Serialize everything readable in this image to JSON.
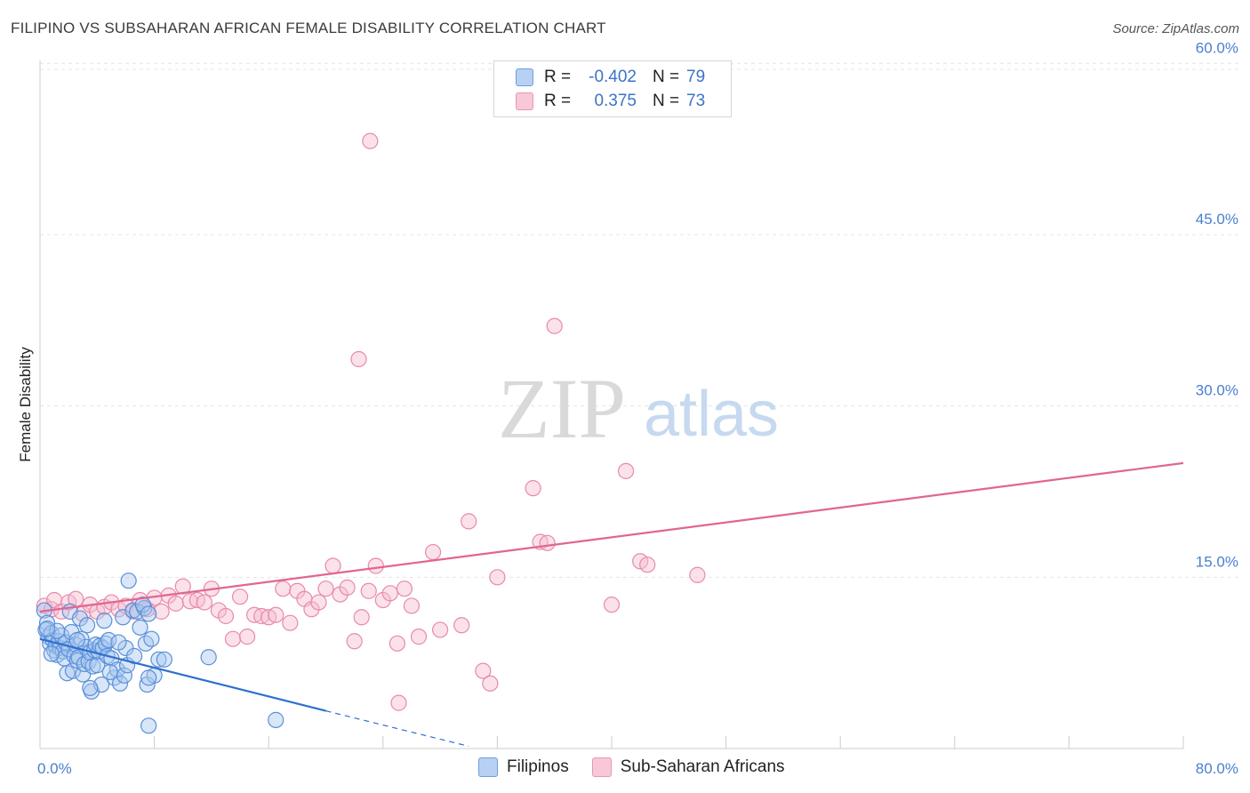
{
  "title": "FILIPINO VS SUBSAHARAN AFRICAN FEMALE DISABILITY CORRELATION CHART",
  "source": "Source: ZipAtlas.com",
  "watermark": {
    "zip": "ZIP",
    "atlas": "atlas"
  },
  "colors": {
    "blue_fill": "#a9c8f0",
    "blue_stroke": "#5a8fd8",
    "blue_line": "#2f6fd0",
    "pink_fill": "#f6bdd0",
    "pink_stroke": "#e88aaa",
    "pink_line": "#e06690",
    "tick": "#4a7fd0"
  },
  "legend": {
    "rows": [
      {
        "r_label": "R =",
        "r_value": "-0.402",
        "n_label": "N =",
        "n_value": "79"
      },
      {
        "r_label": "R =",
        "r_value": "0.375",
        "n_label": "N =",
        "n_value": "73"
      }
    ]
  },
  "bottom_legend": [
    "Filipinos",
    "Sub-Saharan Africans"
  ],
  "chart_data": {
    "type": "scatter",
    "title": "FILIPINO VS SUBSAHARAN AFRICAN FEMALE DISABILITY CORRELATION CHART",
    "xlabel": "",
    "ylabel": "Female Disability",
    "xlim": [
      0,
      80
    ],
    "ylim": [
      0,
      62
    ],
    "x_tick_labels": [
      "0.0%",
      "80.0%"
    ],
    "y_ticks": [
      15,
      30,
      45,
      60
    ],
    "y_tick_labels": [
      "15.0%",
      "30.0%",
      "45.0%",
      "60.0%"
    ],
    "series": [
      {
        "name": "Filipinos",
        "r": -0.402,
        "n": 79,
        "trend": {
          "x": [
            0,
            20
          ],
          "y": [
            9.6,
            3.3
          ],
          "dashed_to": [
            30,
            0.2
          ]
        },
        "points": [
          [
            0.3,
            12.1
          ],
          [
            0.5,
            11.0
          ],
          [
            0.6,
            9.8
          ],
          [
            0.4,
            10.4
          ],
          [
            0.7,
            9.2
          ],
          [
            0.8,
            10.1
          ],
          [
            0.9,
            9.5
          ],
          [
            1.0,
            8.6
          ],
          [
            1.1,
            9.0
          ],
          [
            1.2,
            8.2
          ],
          [
            1.3,
            9.4
          ],
          [
            1.4,
            8.8
          ],
          [
            1.5,
            9.9
          ],
          [
            1.6,
            8.5
          ],
          [
            1.7,
            7.9
          ],
          [
            1.8,
            9.3
          ],
          [
            1.9,
            6.6
          ],
          [
            2.0,
            8.7
          ],
          [
            2.1,
            12.0
          ],
          [
            2.2,
            10.2
          ],
          [
            2.3,
            6.8
          ],
          [
            2.4,
            8.1
          ],
          [
            2.5,
            9.1
          ],
          [
            2.6,
            7.7
          ],
          [
            2.7,
            8.0
          ],
          [
            2.8,
            11.4
          ],
          [
            2.9,
            9.6
          ],
          [
            3.0,
            6.5
          ],
          [
            3.1,
            7.4
          ],
          [
            3.2,
            8.9
          ],
          [
            3.3,
            10.8
          ],
          [
            3.4,
            7.6
          ],
          [
            3.5,
            8.4
          ],
          [
            3.6,
            5.0
          ],
          [
            3.7,
            7.2
          ],
          [
            3.8,
            8.6
          ],
          [
            3.9,
            9.1
          ],
          [
            4.0,
            7.3
          ],
          [
            4.1,
            8.5
          ],
          [
            4.2,
            9.0
          ],
          [
            4.3,
            5.6
          ],
          [
            4.4,
            8.8
          ],
          [
            4.5,
            11.2
          ],
          [
            4.6,
            9.2
          ],
          [
            4.7,
            8.1
          ],
          [
            4.8,
            9.5
          ],
          [
            5.0,
            7.9
          ],
          [
            5.2,
            6.2
          ],
          [
            5.4,
            6.9
          ],
          [
            5.6,
            5.7
          ],
          [
            5.8,
            11.5
          ],
          [
            6.0,
            8.8
          ],
          [
            6.2,
            14.7
          ],
          [
            6.5,
            12.1
          ],
          [
            6.8,
            12.0
          ],
          [
            7.0,
            10.6
          ],
          [
            5.9,
            6.4
          ],
          [
            6.1,
            7.3
          ],
          [
            4.9,
            6.7
          ],
          [
            3.5,
            5.3
          ],
          [
            2.6,
            9.5
          ],
          [
            1.2,
            10.3
          ],
          [
            0.8,
            8.3
          ],
          [
            0.5,
            10.5
          ],
          [
            5.5,
            9.3
          ],
          [
            6.6,
            8.1
          ],
          [
            7.5,
            5.6
          ],
          [
            8.0,
            6.4
          ],
          [
            8.3,
            7.8
          ],
          [
            8.7,
            7.8
          ],
          [
            7.3,
            12.3
          ],
          [
            7.6,
            2.0
          ],
          [
            7.2,
            12.6
          ],
          [
            7.6,
            11.8
          ],
          [
            7.4,
            9.2
          ],
          [
            7.6,
            6.2
          ],
          [
            16.5,
            2.5
          ],
          [
            11.8,
            8.0
          ],
          [
            7.8,
            9.6
          ]
        ]
      },
      {
        "name": "Sub-Saharan Africans",
        "r": 0.375,
        "n": 73,
        "trend": {
          "x": [
            0,
            80
          ],
          "y": [
            12.0,
            25.0
          ]
        },
        "points": [
          [
            0.3,
            12.5
          ],
          [
            0.8,
            12.2
          ],
          [
            1.0,
            13.0
          ],
          [
            1.5,
            12.0
          ],
          [
            2.0,
            12.8
          ],
          [
            2.5,
            13.1
          ],
          [
            3.0,
            11.8
          ],
          [
            3.5,
            12.6
          ],
          [
            4.0,
            12.0
          ],
          [
            4.5,
            12.4
          ],
          [
            5.0,
            12.8
          ],
          [
            5.5,
            12.2
          ],
          [
            6.0,
            12.5
          ],
          [
            6.5,
            12.0
          ],
          [
            7.0,
            13.0
          ],
          [
            7.5,
            12.2
          ],
          [
            8.0,
            13.2
          ],
          [
            8.5,
            12.0
          ],
          [
            9.0,
            13.4
          ],
          [
            9.5,
            12.7
          ],
          [
            10.0,
            14.2
          ],
          [
            10.5,
            12.9
          ],
          [
            11.0,
            13.0
          ],
          [
            11.5,
            12.8
          ],
          [
            12.0,
            14.0
          ],
          [
            12.5,
            12.1
          ],
          [
            13.0,
            11.6
          ],
          [
            13.5,
            9.6
          ],
          [
            14.0,
            13.3
          ],
          [
            14.5,
            9.8
          ],
          [
            15.0,
            11.7
          ],
          [
            15.5,
            11.6
          ],
          [
            16.0,
            11.5
          ],
          [
            16.5,
            11.7
          ],
          [
            17.0,
            14.0
          ],
          [
            17.5,
            11.0
          ],
          [
            18.0,
            13.8
          ],
          [
            18.5,
            13.1
          ],
          [
            19.0,
            12.2
          ],
          [
            19.5,
            12.8
          ],
          [
            20.0,
            14.0
          ],
          [
            20.5,
            16.0
          ],
          [
            21.0,
            13.5
          ],
          [
            21.5,
            14.1
          ],
          [
            22.0,
            9.4
          ],
          [
            22.5,
            11.5
          ],
          [
            23.0,
            13.8
          ],
          [
            23.5,
            16.0
          ],
          [
            24.0,
            13.0
          ],
          [
            24.5,
            13.6
          ],
          [
            25.0,
            9.2
          ],
          [
            25.5,
            14.0
          ],
          [
            26.0,
            12.5
          ],
          [
            26.5,
            9.8
          ],
          [
            27.5,
            17.2
          ],
          [
            28.0,
            10.4
          ],
          [
            22.3,
            34.1
          ],
          [
            23.1,
            53.2
          ],
          [
            25.1,
            4.0
          ],
          [
            29.5,
            10.8
          ],
          [
            30.0,
            19.9
          ],
          [
            31.0,
            6.8
          ],
          [
            31.5,
            5.7
          ],
          [
            32.0,
            15.0
          ],
          [
            34.5,
            22.8
          ],
          [
            35.0,
            18.1
          ],
          [
            35.5,
            18.0
          ],
          [
            36.0,
            37.0
          ],
          [
            40.0,
            12.6
          ],
          [
            41.0,
            24.3
          ],
          [
            42.0,
            16.4
          ],
          [
            42.5,
            16.1
          ],
          [
            46.0,
            15.2
          ]
        ]
      }
    ]
  }
}
